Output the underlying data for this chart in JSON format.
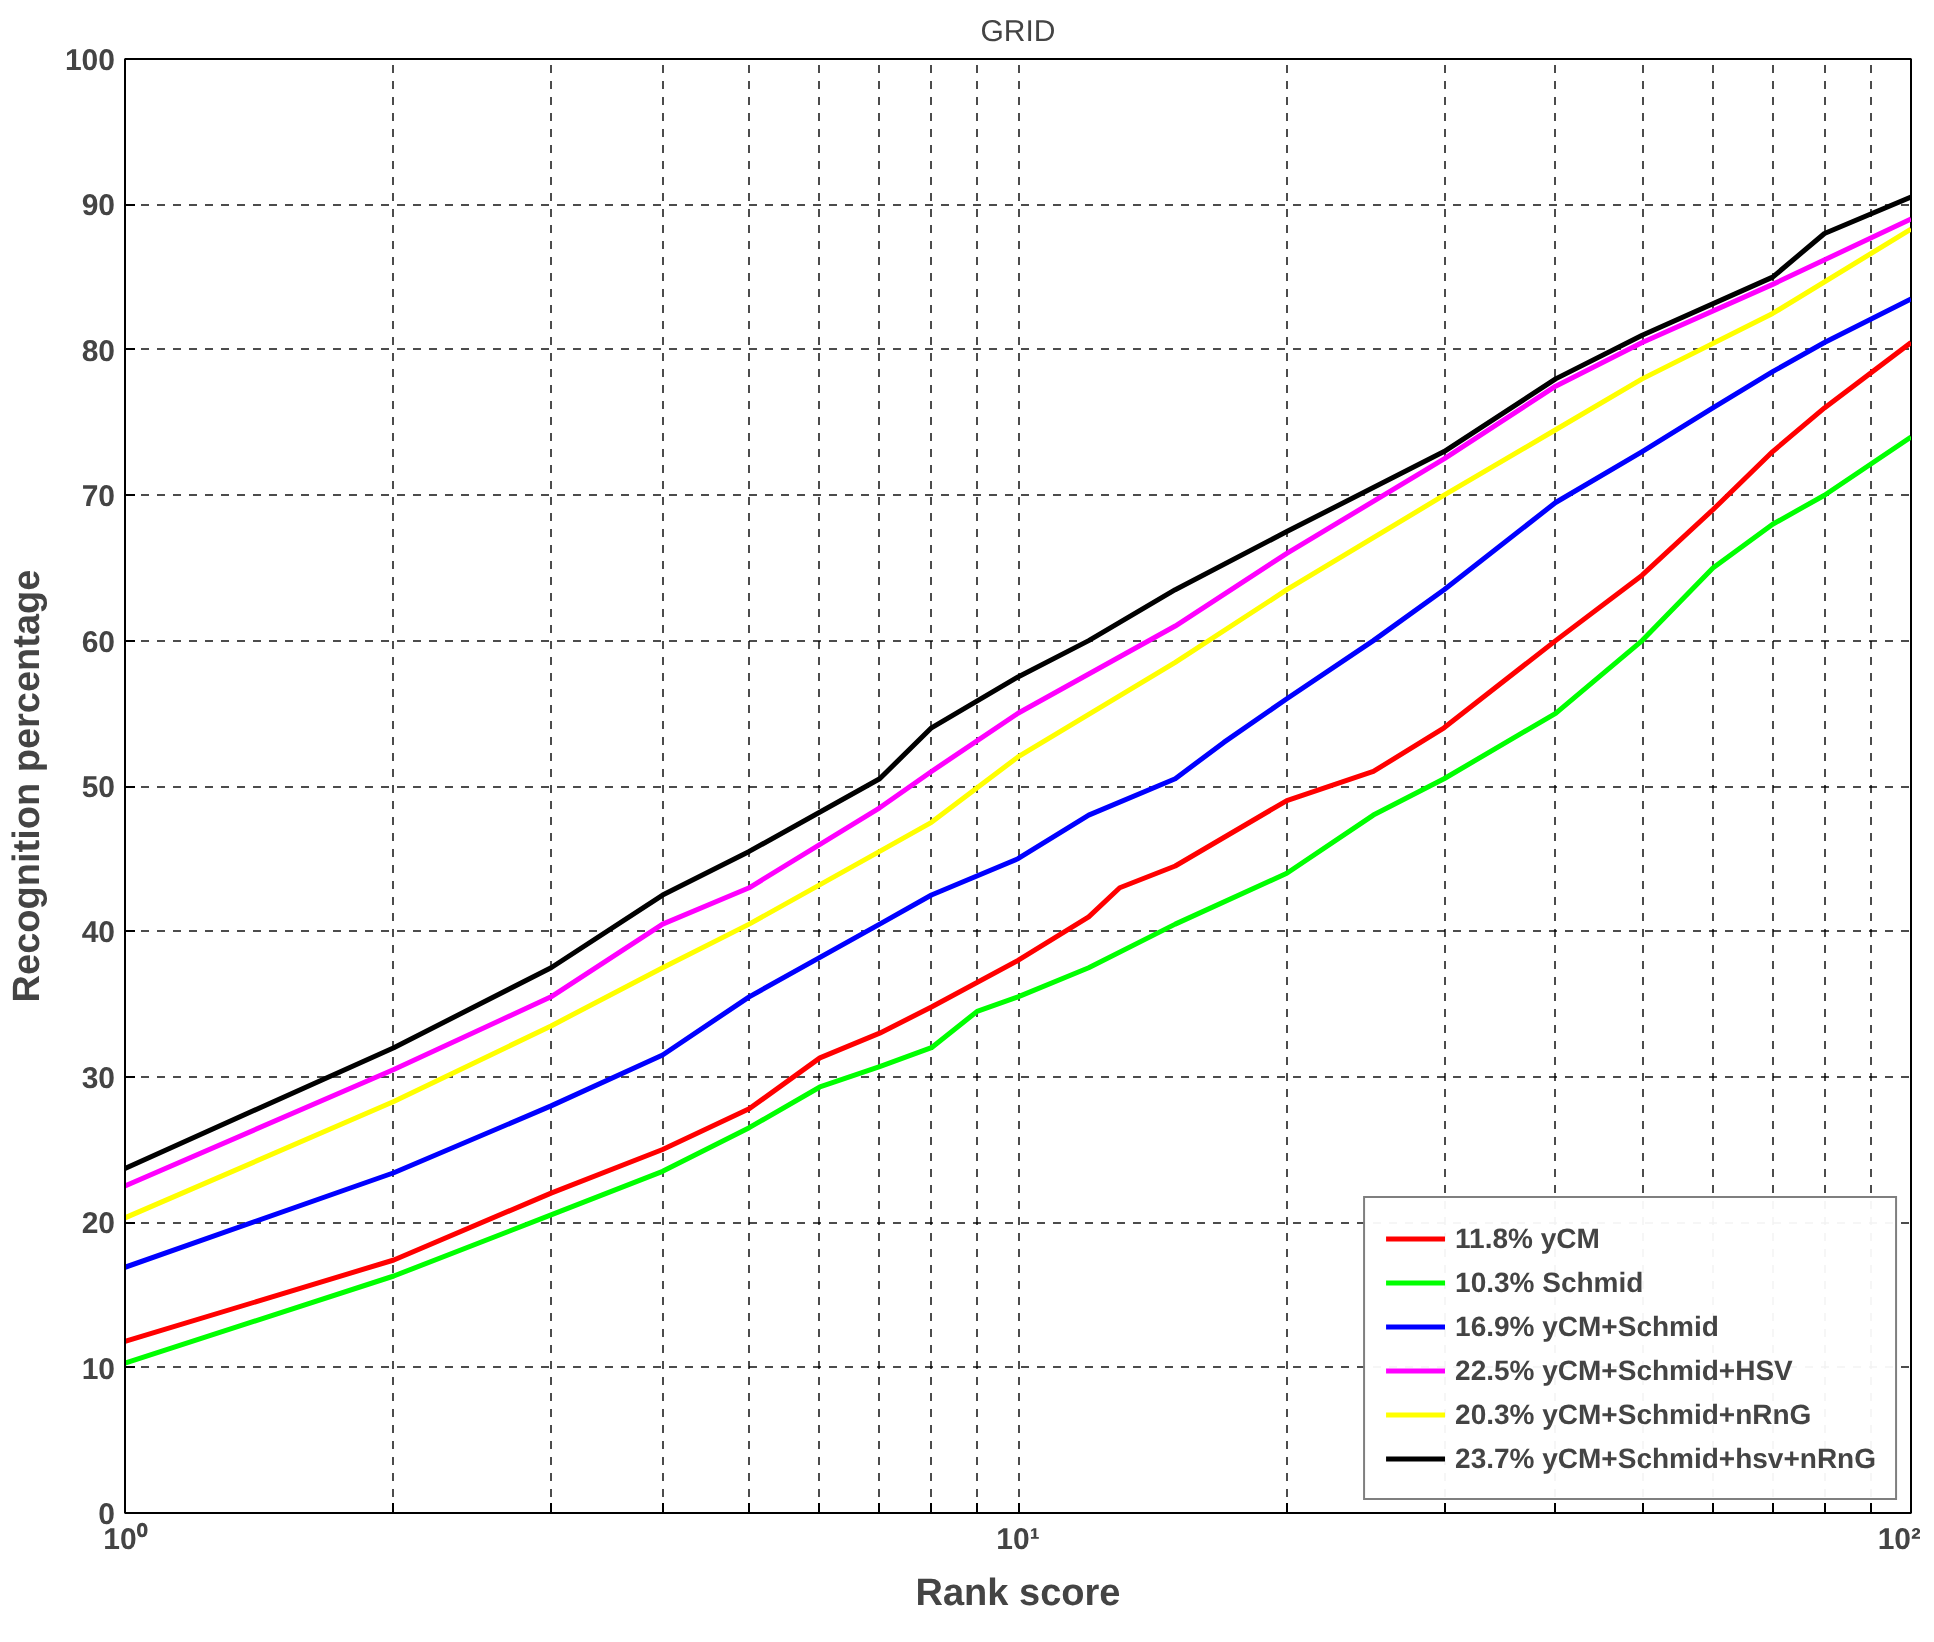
{
  "chart_data": {
    "type": "line",
    "title": "GRID",
    "xlabel": "Rank score",
    "ylabel": "Recognition percentage",
    "log": "x",
    "grid": true,
    "legend": "bottom right",
    "line_style": "solid",
    "xlim": [
      1,
      100
    ],
    "ylim": [
      0,
      100
    ],
    "xticks": [
      {
        "value": 1,
        "label": "10⁰"
      },
      {
        "value": 2,
        "label": null
      },
      {
        "value": 3,
        "label": null
      },
      {
        "value": 4,
        "label": null
      },
      {
        "value": 5,
        "label": null
      },
      {
        "value": 6,
        "label": null
      },
      {
        "value": 7,
        "label": null
      },
      {
        "value": 8,
        "label": null
      },
      {
        "value": 9,
        "label": null
      },
      {
        "value": 10,
        "label": "10¹"
      },
      {
        "value": 20,
        "label": null
      },
      {
        "value": 30,
        "label": null
      },
      {
        "value": 40,
        "label": null
      },
      {
        "value": 50,
        "label": null
      },
      {
        "value": 60,
        "label": null
      },
      {
        "value": 70,
        "label": null
      },
      {
        "value": 80,
        "label": null
      },
      {
        "value": 90,
        "label": null
      },
      {
        "value": 100,
        "label": "10²"
      }
    ],
    "yticks": [
      0,
      10,
      20,
      30,
      40,
      50,
      60,
      70,
      80,
      90,
      100
    ],
    "series": [
      {
        "name": "11.8% yCM",
        "color": "#ff0000",
        "x": [
          1,
          2,
          3,
          4,
          5,
          6,
          7,
          8,
          10,
          12,
          13,
          15,
          20,
          25,
          30,
          40,
          50,
          60,
          70,
          80,
          100
        ],
        "values": [
          11.8,
          17.4,
          22,
          25,
          27.8,
          31.3,
          33,
          34.8,
          38,
          41,
          43,
          44.5,
          49,
          51,
          54,
          60,
          64.5,
          69,
          73,
          76,
          80.5
        ]
      },
      {
        "name": "10.3% Schmid",
        "color": "#00ff00",
        "x": [
          1,
          2,
          3,
          4,
          5,
          6,
          7,
          8,
          9,
          10,
          12,
          15,
          20,
          25,
          30,
          40,
          50,
          60,
          70,
          80,
          100
        ],
        "values": [
          10.3,
          16.3,
          20.5,
          23.5,
          26.5,
          29.3,
          30.7,
          32,
          34.5,
          35.5,
          37.5,
          40.5,
          44,
          48,
          50.5,
          55,
          60,
          65,
          68,
          70,
          74
        ]
      },
      {
        "name": "16.9% yCM+Schmid",
        "color": "#0000ff",
        "x": [
          1,
          2,
          3,
          4,
          5,
          7,
          8,
          10,
          12,
          15,
          17,
          20,
          25,
          30,
          40,
          50,
          60,
          70,
          80,
          100
        ],
        "values": [
          16.9,
          23.4,
          28,
          31.5,
          35.5,
          40.5,
          42.5,
          45,
          48,
          50.5,
          53,
          56,
          60,
          63.5,
          69.5,
          73,
          76,
          78.5,
          80.5,
          83.5
        ]
      },
      {
        "name": "22.5% yCM+Schmid+HSV",
        "color": "#ff00ff",
        "x": [
          1,
          2,
          3,
          4,
          5,
          7,
          8,
          10,
          15,
          20,
          30,
          40,
          50,
          70,
          100
        ],
        "values": [
          22.5,
          30.5,
          35.5,
          40.5,
          43,
          48.5,
          51,
          55,
          61,
          66,
          72.5,
          77.5,
          80.5,
          84.5,
          89
        ]
      },
      {
        "name": "20.3% yCM+Schmid+nRnG",
        "color": "#ffff00",
        "x": [
          1,
          2,
          3,
          4,
          5,
          7,
          8,
          10,
          15,
          20,
          30,
          40,
          50,
          70,
          100
        ],
        "values": [
          20.3,
          28.3,
          33.5,
          37.5,
          40.5,
          45.5,
          47.5,
          52,
          58.5,
          63.5,
          70,
          74.5,
          78,
          82.5,
          88.3
        ]
      },
      {
        "name": "23.7% yCM+Schmid+hsv+nRnG",
        "color": "#000000",
        "x": [
          1,
          2,
          3,
          4,
          5,
          7,
          8,
          10,
          12,
          15,
          20,
          30,
          40,
          50,
          70,
          80,
          100
        ],
        "values": [
          23.7,
          32,
          37.5,
          42.5,
          45.5,
          50.5,
          54,
          57.5,
          60,
          63.5,
          67.5,
          73,
          78,
          81,
          85,
          88,
          90.5
        ]
      }
    ]
  }
}
